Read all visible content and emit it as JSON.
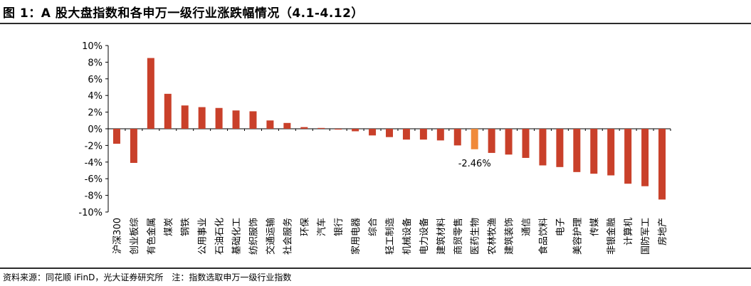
{
  "title": "图 1：A 股大盘指数和各申万一级行业涨跌幅情况（4.1-4.12）",
  "source": "资料来源：同花顺 iFinD，光大证券研究所　注：指数选取申万一级行业指数",
  "colors": {
    "bar": "#c9402a",
    "highlight": "#f08a3a",
    "axis": "#000000"
  },
  "chart_data": {
    "type": "bar",
    "categories": [
      "沪深300",
      "创业板综",
      "有色金属",
      "煤炭",
      "钢铁",
      "公用事业",
      "石油石化",
      "基础化工",
      "纺织服饰",
      "交通运输",
      "社会服务",
      "环保",
      "汽车",
      "银行",
      "家用电器",
      "综合",
      "轻工制造",
      "机械设备",
      "电力设备",
      "建筑材料",
      "商贸零售",
      "医药生物",
      "农林牧渔",
      "建筑装饰",
      "通信",
      "食品饮料",
      "电子",
      "美容护理",
      "传媒",
      "非银金融",
      "计算机",
      "国防军工",
      "房地产"
    ],
    "values": [
      -1.8,
      -4.1,
      8.5,
      4.2,
      2.8,
      2.6,
      2.5,
      2.2,
      2.1,
      1.0,
      0.7,
      0.2,
      0.1,
      -0.1,
      -0.3,
      -0.8,
      -1.0,
      -1.3,
      -1.3,
      -1.4,
      -2.0,
      -2.46,
      -2.9,
      -3.1,
      -3.5,
      -4.4,
      -4.6,
      -5.2,
      -5.4,
      -5.6,
      -6.6,
      -6.9,
      -8.5
    ],
    "highlight_index": 21,
    "annotation": "-2.46%",
    "yticks": [
      "10%",
      "8%",
      "6%",
      "4%",
      "2%",
      "0%",
      "-2%",
      "-4%",
      "-6%",
      "-8%",
      "-10%"
    ],
    "ylim": [
      -10,
      10
    ],
    "grid": false,
    "legend": "none"
  }
}
